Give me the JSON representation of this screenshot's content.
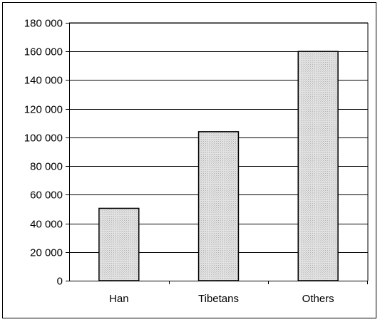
{
  "chart_data": {
    "type": "bar",
    "categories": [
      "Han",
      "Tibetans",
      "Others"
    ],
    "values": [
      50500,
      104000,
      160000
    ],
    "ylim": [
      0,
      180000
    ],
    "yticks": [
      0,
      20000,
      40000,
      60000,
      80000,
      100000,
      120000,
      140000,
      160000,
      180000
    ],
    "ytick_labels": [
      "0",
      "20 000",
      "40 000",
      "60 000",
      "80 000",
      "100 000",
      "120 000",
      "140 000",
      "160 000",
      "180 000"
    ],
    "grid": true,
    "legend": "none",
    "title": "",
    "xlabel": "",
    "ylabel": "",
    "colors": {
      "bar_fill": "#d9d9d9",
      "bar_stroke": "#000000",
      "grid": "#000000"
    }
  }
}
